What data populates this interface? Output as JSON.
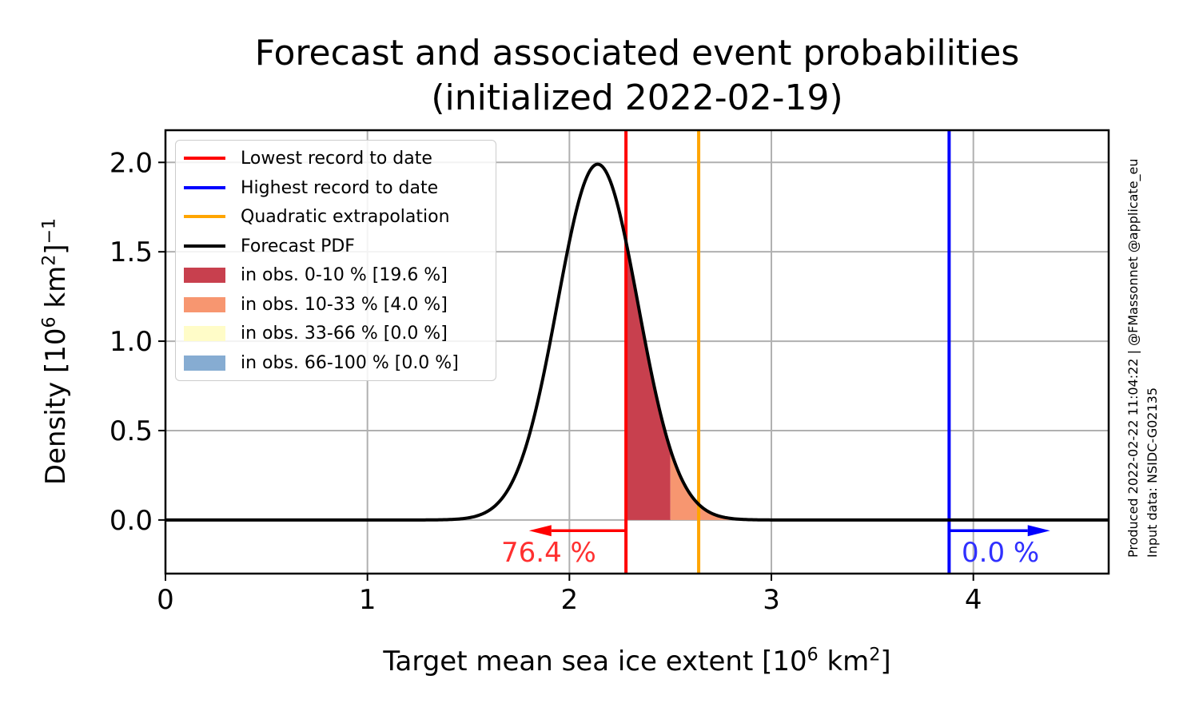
{
  "title_line1": "Forecast and associated event probabilities",
  "title_line2": "(initialized 2022-02-19)",
  "ylabel": {
    "pre": "Density [10",
    "exp1": "6",
    "mid": " km",
    "exp2": "2",
    "post": "]",
    "exp3": "−1"
  },
  "xlabel": {
    "pre": "Target mean sea ice extent [10",
    "exp1": "6",
    "mid": " km",
    "exp2": "2",
    "post": "]"
  },
  "side_line1": "Produced 2022-02-22 11:04:22 | @FMassonnet @applicate_eu",
  "side_line2": "Input data: NSIDC-G02135",
  "legend": [
    {
      "kind": "line",
      "color": "#ff0000",
      "label": "Lowest record to date"
    },
    {
      "kind": "line",
      "color": "#0000ff",
      "label": "Highest record to date"
    },
    {
      "kind": "line",
      "color": "#ffa500",
      "label": "Quadratic extrapolation"
    },
    {
      "kind": "line",
      "color": "#000000",
      "label": "Forecast PDF"
    },
    {
      "kind": "patch",
      "color": "#c8404e",
      "label": "in obs. 0-10 % [19.6 %]"
    },
    {
      "kind": "patch",
      "color": "#f79670",
      "label": "in obs. 10-33 % [4.0 %]"
    },
    {
      "kind": "patch",
      "color": "#fffcc8",
      "label": "in obs. 33-66 % [0.0 %]"
    },
    {
      "kind": "patch",
      "color": "#86acd2",
      "label": "in obs. 66-100 % [0.0 %]"
    }
  ],
  "annotations": {
    "low_pct": "76.4 %",
    "high_pct": "0.0 %"
  },
  "chart_data": {
    "type": "line",
    "title": "Forecast and associated event probabilities (initialized 2022-02-19)",
    "xlabel": "Target mean sea ice extent [10^6 km^2]",
    "ylabel": "Density [10^6 km^2]^-1",
    "xlim": [
      0,
      4.67
    ],
    "ylim": [
      -0.3,
      2.18
    ],
    "xticks": [
      0,
      1,
      2,
      3,
      4
    ],
    "yticks": [
      0.0,
      0.5,
      1.0,
      1.5,
      2.0
    ],
    "ytick_labels": [
      "0.0",
      "0.5",
      "1.0",
      "1.5",
      "2.0"
    ],
    "grid": true,
    "legend_position": "upper-left",
    "pdf": {
      "type": "gaussian",
      "mean": 2.14,
      "sd": 0.2,
      "peak": 1.99
    },
    "vertical_lines": [
      {
        "name": "Lowest record to date",
        "x": 2.28,
        "color": "#ff0000"
      },
      {
        "name": "Quadratic extrapolation",
        "x": 2.64,
        "color": "#ffa500"
      },
      {
        "name": "Highest record to date",
        "x": 3.88,
        "color": "#0000ff"
      }
    ],
    "shaded_regions": [
      {
        "name": "in obs. 0-10 %",
        "from": 2.28,
        "to": 2.5,
        "color": "#c8404e",
        "probability": 19.6
      },
      {
        "name": "in obs. 10-33 %",
        "from": 2.5,
        "to": 3.2,
        "color": "#f79670",
        "probability": 4.0
      }
    ],
    "arrows": [
      {
        "from": 2.28,
        "to": 1.8,
        "y": -0.06,
        "color": "#ff0000",
        "label": "76.4 %"
      },
      {
        "from": 3.88,
        "to": 4.38,
        "y": -0.06,
        "color": "#0000ff",
        "label": "0.0 %"
      }
    ]
  }
}
